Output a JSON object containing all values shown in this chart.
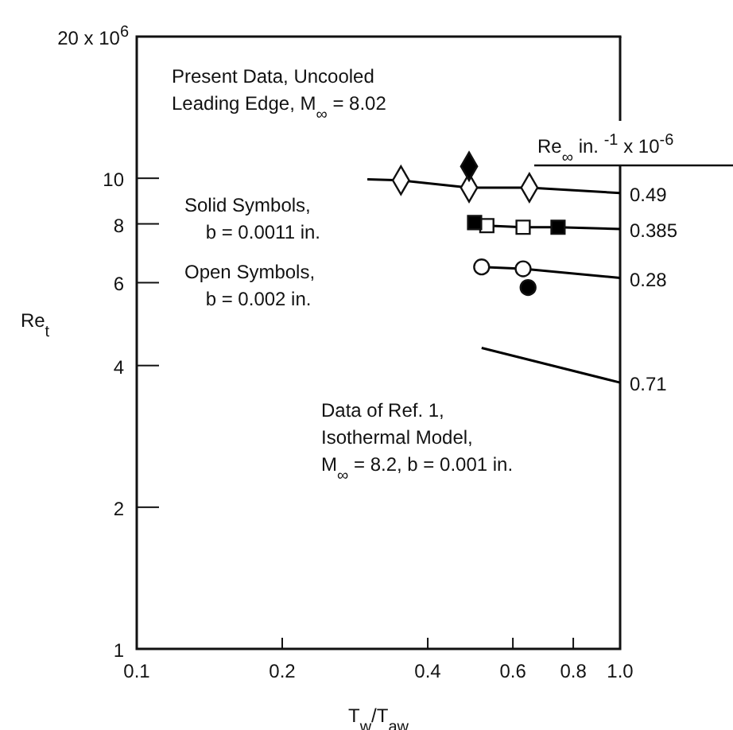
{
  "chart_data": {
    "type": "scatter",
    "xlabel": "T$_{w}$/T$_{aw}$",
    "ylabel": "Re$_{t}$",
    "log": "xy",
    "xlim": [
      0.1,
      1.0
    ],
    "xticks": [
      0.1,
      0.2,
      0.4,
      0.6,
      0.8,
      {
        "value": 1.0,
        "label": "1.0"
      }
    ],
    "ylim": [
      1,
      20
    ],
    "yticks": [
      1,
      2,
      4,
      6,
      8,
      10,
      {
        "value": 20,
        "label": null
      }
    ],
    "annotations": [
      "Present Data, Uncooled\nLeading Edge, M$_{∞}$ = 8.02",
      "Solid Symbols,\n    b = 0.0011 in.",
      "Open Symbols,\n    b = 0.002 in.",
      "Data of Ref. 1,\nIsothermal Model,\nM$_{∞}$ = 8.2, b = 0.001 in.",
      "Re$_{∞}$ in. $^{-1}$ x 10$^{-6}$",
      "20 x 10$^{6}$"
    ],
    "series": [
      {
        "name": "0.49",
        "type": "line",
        "marker": "none",
        "color": "#000000",
        "x": [
          0.3,
          0.352,
          0.487,
          0.649,
          1.0
        ],
        "values": [
          9.95,
          9.9,
          9.55,
          9.55,
          9.3
        ]
      },
      {
        "name": "0.385",
        "type": "line",
        "marker": "none",
        "color": "#000000",
        "x": [
          0.53,
          0.63,
          0.744,
          1.0
        ],
        "values": [
          7.93,
          7.87,
          7.87,
          7.8
        ]
      },
      {
        "name": "0.28",
        "type": "line",
        "marker": "none",
        "color": "#000000",
        "x": [
          0.517,
          0.63,
          1.0
        ],
        "values": [
          6.48,
          6.42,
          6.14
        ]
      },
      {
        "name": "0.71",
        "type": "line",
        "marker": "none",
        "color": "#000000",
        "x": [
          0.517,
          1.0
        ],
        "values": [
          4.36,
          3.68
        ]
      },
      {
        "type": "scatter",
        "marker": "diamond",
        "color": "#ffffff",
        "x": [
          0.352,
          0.487,
          0.649
        ],
        "values": [
          9.9,
          9.55,
          9.55
        ]
      },
      {
        "type": "scatter",
        "marker": "diamond",
        "color": "#000000",
        "x": [
          0.487
        ],
        "values": [
          10.6
        ]
      },
      {
        "type": "scatter",
        "marker": "square",
        "color": "#ffffff",
        "x": [
          0.53,
          0.63
        ],
        "values": [
          7.93,
          7.87
        ]
      },
      {
        "type": "scatter",
        "marker": "square",
        "color": "#000000",
        "x": [
          0.5,
          0.744
        ],
        "values": [
          8.05,
          7.87
        ]
      },
      {
        "type": "scatter",
        "marker": "circle",
        "color": "#ffffff",
        "x": [
          0.517,
          0.63
        ],
        "values": [
          6.48,
          6.42
        ]
      },
      {
        "type": "scatter",
        "marker": "circle",
        "color": "#000000",
        "x": [
          0.645
        ],
        "values": [
          5.86
        ]
      }
    ]
  }
}
